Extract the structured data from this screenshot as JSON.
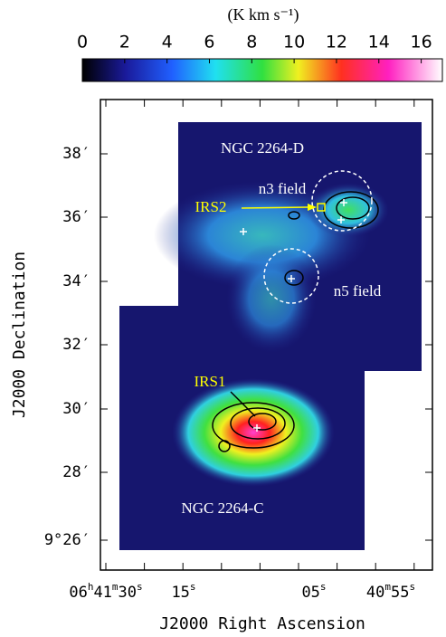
{
  "chart_data": {
    "type": "image",
    "colorbar": {
      "label": "(K km s⁻¹)",
      "lim": [
        0,
        17
      ],
      "ticks": [
        0,
        2,
        4,
        6,
        8,
        10,
        12,
        14,
        16
      ]
    },
    "xlabel": "J2000 Right Ascension",
    "ylabel": "J2000 Declination",
    "xticklabels": [
      "06h41m30s",
      "15s",
      "05s",
      "40m55s"
    ],
    "yticklabels": [
      "38′",
      "36′",
      "34′",
      "32′",
      "30′",
      "28′",
      "9°26′"
    ],
    "annotations": [
      "NGC 2264-D",
      "n3 field",
      "IRS2",
      "n5 field",
      "IRS1",
      "NGC 2264-C"
    ]
  }
}
